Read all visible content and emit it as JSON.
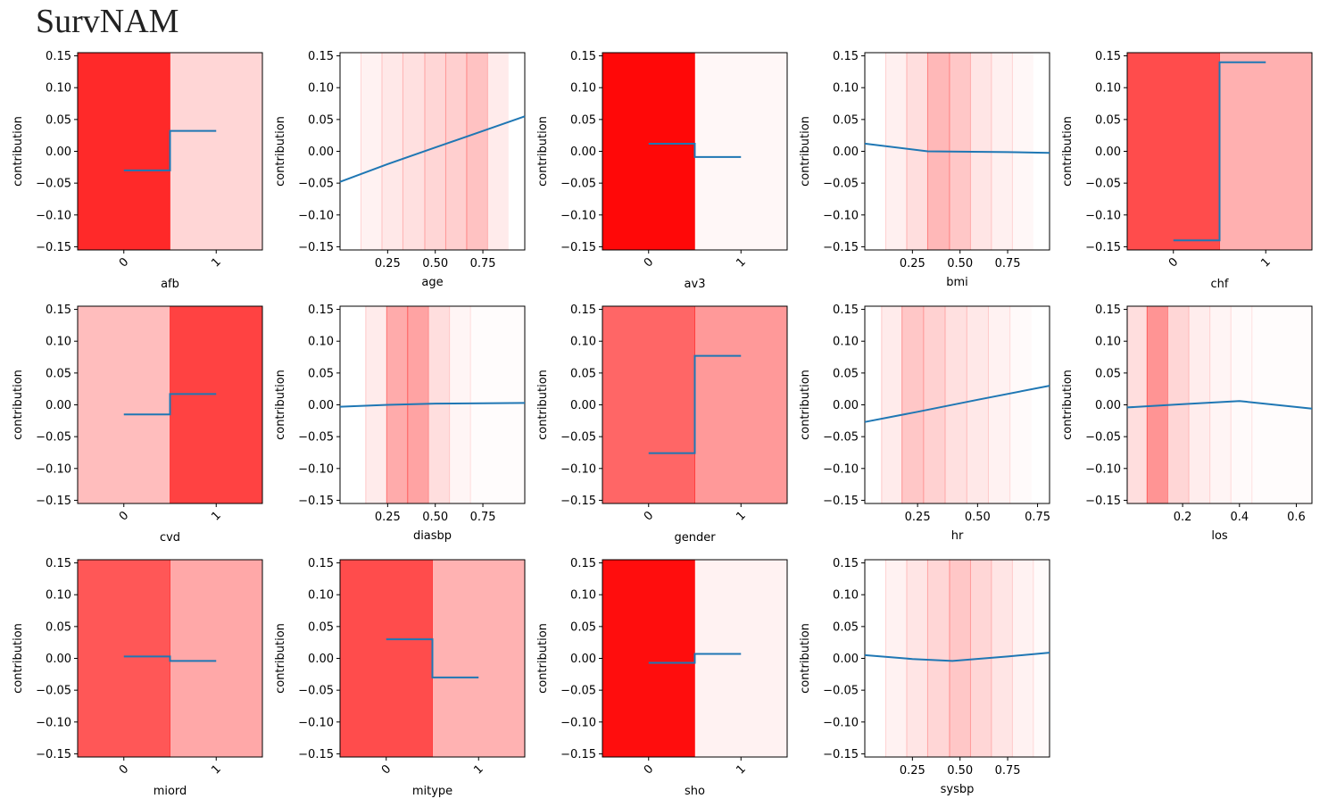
{
  "title": "SurvNAM",
  "colors": {
    "line": "#1f77b4",
    "band": "#ff0000",
    "axis": "#000000"
  },
  "ylabel": "contribution",
  "ylim": [
    -0.155,
    0.155
  ],
  "yticks": [
    0.15,
    0.1,
    0.05,
    0.0,
    -0.05,
    -0.1,
    -0.15
  ],
  "ytick_labels": [
    "0.15",
    "0.10",
    "0.05",
    "0.00",
    "−0.05",
    "−0.10",
    "−0.15"
  ],
  "chart_data": [
    {
      "type": "step",
      "name": "afb",
      "title": "",
      "xlabel": "afb",
      "ylabel": "contribution",
      "categories": [
        "0",
        "1"
      ],
      "values": [
        -0.03,
        0.032
      ],
      "band_alpha": [
        0.84,
        0.16
      ]
    },
    {
      "type": "line",
      "name": "age",
      "title": "",
      "xlabel": "age",
      "ylabel": "contribution",
      "xlim": [
        0.0,
        0.97
      ],
      "xticks": [
        "0.25",
        "0.50",
        "0.75"
      ],
      "x": [
        0.0,
        0.25,
        0.5,
        0.75,
        0.97
      ],
      "y": [
        -0.048,
        -0.02,
        0.006,
        0.032,
        0.055
      ],
      "bins": [
        0.0,
        0.11,
        0.22,
        0.33,
        0.445,
        0.555,
        0.665,
        0.775,
        0.885,
        0.97
      ],
      "band_alpha": [
        0.0,
        0.05,
        0.09,
        0.12,
        0.16,
        0.19,
        0.24,
        0.08,
        0.0
      ]
    },
    {
      "type": "step",
      "name": "av3",
      "title": "",
      "xlabel": "av3",
      "ylabel": "contribution",
      "categories": [
        "0",
        "1"
      ],
      "values": [
        0.012,
        -0.009
      ],
      "band_alpha": [
        0.97,
        0.03
      ]
    },
    {
      "type": "line",
      "name": "bmi",
      "title": "",
      "xlabel": "bmi",
      "ylabel": "contribution",
      "xlim": [
        0.0,
        0.97
      ],
      "xticks": [
        "0.25",
        "0.50",
        "0.75"
      ],
      "x": [
        0.0,
        0.33,
        0.5,
        0.75,
        0.97
      ],
      "y": [
        0.012,
        0.0,
        -0.0005,
        -0.0012,
        -0.0025
      ],
      "bins": [
        0.0,
        0.11,
        0.22,
        0.33,
        0.445,
        0.555,
        0.665,
        0.775,
        0.885,
        0.97
      ],
      "band_alpha": [
        0.0,
        0.06,
        0.13,
        0.28,
        0.22,
        0.1,
        0.06,
        0.03,
        0.0
      ]
    },
    {
      "type": "step",
      "name": "chf",
      "title": "",
      "xlabel": "chf",
      "ylabel": "contribution",
      "categories": [
        "0",
        "1"
      ],
      "values": [
        -0.14,
        0.14
      ],
      "band_alpha": [
        0.7,
        0.31
      ]
    },
    {
      "type": "step",
      "name": "cvd",
      "title": "",
      "xlabel": "cvd",
      "ylabel": "contribution",
      "categories": [
        "0",
        "1"
      ],
      "values": [
        -0.015,
        0.017
      ],
      "band_alpha": [
        0.26,
        0.74
      ]
    },
    {
      "type": "line",
      "name": "diasbp",
      "title": "",
      "xlabel": "diasbp",
      "ylabel": "contribution",
      "xlim": [
        0.0,
        0.97
      ],
      "xticks": [
        "0.25",
        "0.50",
        "0.75"
      ],
      "x": [
        0.0,
        0.25,
        0.5,
        0.75,
        0.97
      ],
      "y": [
        -0.003,
        0.0,
        0.002,
        0.0025,
        0.003
      ],
      "bins": [
        0.0,
        0.135,
        0.245,
        0.355,
        0.465,
        0.575,
        0.685,
        0.97
      ],
      "band_alpha": [
        0.0,
        0.08,
        0.33,
        0.36,
        0.13,
        0.04,
        0.01
      ]
    },
    {
      "type": "step",
      "name": "gender",
      "title": "",
      "xlabel": "gender",
      "ylabel": "contribution",
      "categories": [
        "0",
        "1"
      ],
      "values": [
        -0.076,
        0.077
      ],
      "band_alpha": [
        0.6,
        0.4
      ]
    },
    {
      "type": "line",
      "name": "hr",
      "title": "",
      "xlabel": "hr",
      "ylabel": "contribution",
      "xlim": [
        0.03,
        0.8
      ],
      "xticks": [
        "0.25",
        "0.50",
        "0.75"
      ],
      "x": [
        0.03,
        0.25,
        0.5,
        0.8
      ],
      "y": [
        -0.027,
        -0.011,
        0.008,
        0.03
      ],
      "bins": [
        0.03,
        0.1,
        0.185,
        0.275,
        0.365,
        0.455,
        0.545,
        0.635,
        0.725,
        0.8
      ],
      "band_alpha": [
        0.0,
        0.08,
        0.22,
        0.18,
        0.12,
        0.09,
        0.05,
        0.02,
        0.0
      ]
    },
    {
      "type": "line",
      "name": "los",
      "title": "",
      "xlabel": "los",
      "ylabel": "contribution",
      "xlim": [
        0.005,
        0.655
      ],
      "xticks": [
        "0.2",
        "0.4",
        "0.6"
      ],
      "x": [
        0.005,
        0.2,
        0.4,
        0.655
      ],
      "y": [
        -0.004,
        0.001,
        0.006,
        -0.006
      ],
      "bins": [
        0.005,
        0.075,
        0.148,
        0.222,
        0.296,
        0.37,
        0.444,
        0.655
      ],
      "band_alpha": [
        0.13,
        0.42,
        0.16,
        0.07,
        0.04,
        0.02,
        0.01
      ]
    },
    {
      "type": "step",
      "name": "miord",
      "title": "",
      "xlabel": "miord",
      "ylabel": "contribution",
      "categories": [
        "0",
        "1"
      ],
      "values": [
        0.003,
        -0.004
      ],
      "band_alpha": [
        0.66,
        0.34
      ]
    },
    {
      "type": "step",
      "name": "mitype",
      "title": "",
      "xlabel": "mitype",
      "ylabel": "contribution",
      "categories": [
        "0",
        "1"
      ],
      "values": [
        0.03,
        -0.03
      ],
      "band_alpha": [
        0.7,
        0.3
      ]
    },
    {
      "type": "step",
      "name": "sho",
      "title": "",
      "xlabel": "sho",
      "ylabel": "contribution",
      "categories": [
        "0",
        "1"
      ],
      "values": [
        -0.007,
        0.007
      ],
      "band_alpha": [
        0.95,
        0.05
      ]
    },
    {
      "type": "line",
      "name": "sysbp",
      "title": "",
      "xlabel": "sysbp",
      "ylabel": "contribution",
      "xlim": [
        0.0,
        0.97
      ],
      "xticks": [
        "0.25",
        "0.50",
        "0.75"
      ],
      "x": [
        0.0,
        0.25,
        0.46,
        0.75,
        0.97
      ],
      "y": [
        0.005,
        -0.001,
        -0.004,
        0.003,
        0.009
      ],
      "bins": [
        0.0,
        0.11,
        0.22,
        0.33,
        0.445,
        0.555,
        0.665,
        0.775,
        0.885,
        0.97
      ],
      "band_alpha": [
        0.0,
        0.05,
        0.1,
        0.16,
        0.22,
        0.16,
        0.1,
        0.05,
        0.02
      ]
    }
  ]
}
